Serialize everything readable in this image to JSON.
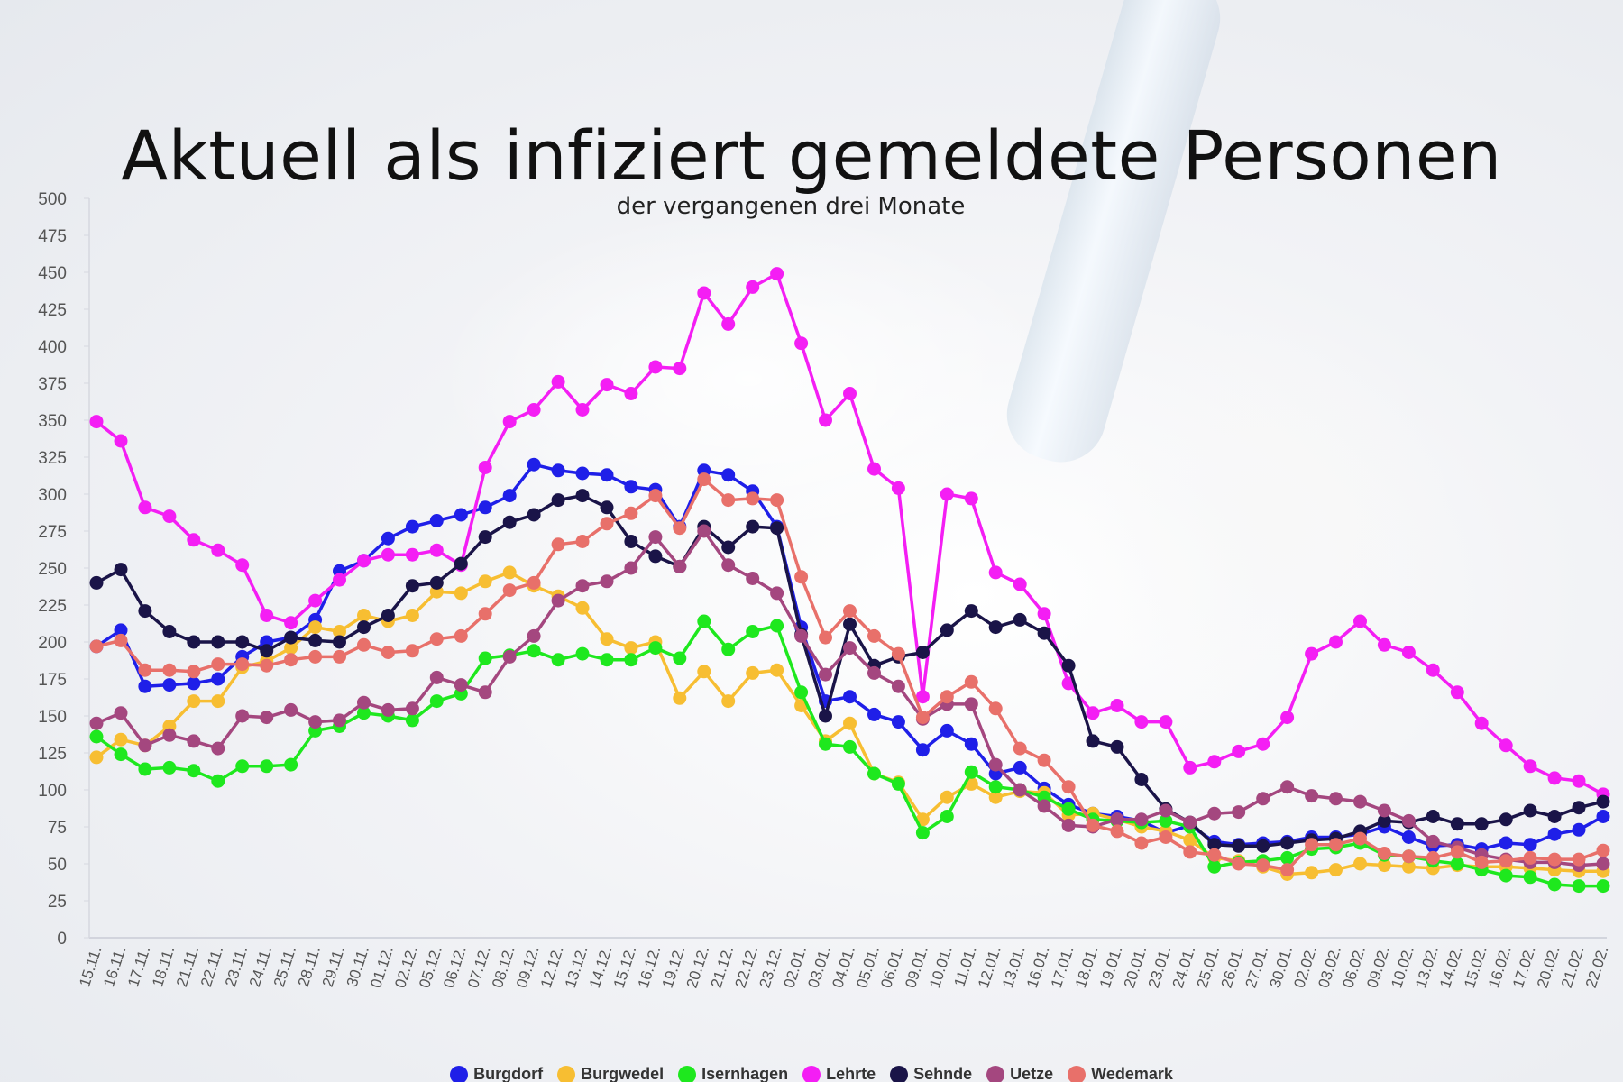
{
  "title": "Aktuell als infiziert gemeldete Personen",
  "subtitle": "der vergangenen drei Monate",
  "chart_data": {
    "type": "line",
    "title": "Aktuell als infiziert gemeldete Personen",
    "subtitle": "der vergangenen drei Monate",
    "xlabel": "",
    "ylabel": "",
    "ylim": [
      0,
      500
    ],
    "yticks": [
      0,
      25,
      50,
      75,
      100,
      125,
      150,
      175,
      200,
      225,
      250,
      275,
      300,
      325,
      350,
      375,
      400,
      425,
      450,
      475,
      500
    ],
    "grid": false,
    "legend_position": "bottom-center",
    "categories": [
      "15.11.",
      "16.11.",
      "17.11.",
      "18.11.",
      "21.11.",
      "22.11.",
      "23.11.",
      "24.11.",
      "25.11.",
      "28.11.",
      "29.11.",
      "30.11.",
      "01.12.",
      "02.12.",
      "05.12.",
      "06.12.",
      "07.12.",
      "08.12.",
      "09.12.",
      "12.12.",
      "13.12.",
      "14.12.",
      "15.12.",
      "16.12.",
      "19.12.",
      "20.12.",
      "21.12.",
      "22.12.",
      "23.12.",
      "02.01.",
      "03.01.",
      "04.01.",
      "05.01.",
      "06.01.",
      "09.01.",
      "10.01.",
      "11.01.",
      "12.01.",
      "13.01.",
      "16.01.",
      "17.01.",
      "18.01.",
      "19.01.",
      "20.01.",
      "23.01.",
      "24.01.",
      "25.01.",
      "26.01.",
      "27.01.",
      "30.01.",
      "02.02.",
      "03.02.",
      "06.02.",
      "09.02.",
      "10.02.",
      "13.02.",
      "14.02.",
      "15.02.",
      "16.02.",
      "17.02.",
      "20.02.",
      "21.02.",
      "22.02."
    ],
    "series": [
      {
        "name": "Burgdorf",
        "color": "#1f1fe8",
        "values": [
          197,
          208,
          170,
          171,
          172,
          175,
          190,
          200,
          203,
          215,
          248,
          255,
          270,
          278,
          282,
          286,
          291,
          299,
          320,
          316,
          314,
          313,
          305,
          303,
          278,
          316,
          313,
          302,
          278,
          210,
          160,
          163,
          151,
          146,
          127,
          140,
          131,
          111,
          115,
          101,
          90,
          84,
          82,
          79,
          71,
          76,
          65,
          63,
          64,
          65,
          68,
          68,
          70,
          75,
          68,
          62,
          63,
          60,
          64,
          63,
          70,
          73,
          82
        ]
      },
      {
        "name": "Burgwedel",
        "color": "#f7be32",
        "values": [
          122,
          134,
          130,
          143,
          160,
          160,
          183,
          187,
          196,
          210,
          207,
          218,
          214,
          218,
          234,
          233,
          241,
          247,
          238,
          231,
          223,
          202,
          196,
          200,
          162,
          180,
          160,
          179,
          181,
          157,
          133,
          145,
          111,
          105,
          80,
          95,
          104,
          95,
          99,
          98,
          83,
          84,
          80,
          75,
          72,
          66,
          54,
          52,
          48,
          43,
          44,
          46,
          50,
          49,
          48,
          47,
          49,
          48,
          48,
          47,
          46,
          45,
          45
        ]
      },
      {
        "name": "Isernhagen",
        "color": "#1ee81e",
        "values": [
          136,
          124,
          114,
          115,
          113,
          106,
          116,
          116,
          117,
          140,
          143,
          152,
          150,
          147,
          160,
          165,
          189,
          191,
          194,
          188,
          192,
          188,
          188,
          196,
          189,
          214,
          195,
          207,
          211,
          166,
          131,
          129,
          111,
          104,
          71,
          82,
          112,
          102,
          100,
          95,
          87,
          80,
          79,
          78,
          79,
          75,
          48,
          51,
          52,
          54,
          60,
          61,
          64,
          56,
          55,
          52,
          50,
          46,
          42,
          41,
          36,
          35,
          35
        ]
      },
      {
        "name": "Lehrte",
        "color": "#f41ef4",
        "values": [
          349,
          336,
          291,
          285,
          269,
          262,
          252,
          218,
          213,
          228,
          242,
          255,
          259,
          259,
          262,
          252,
          318,
          349,
          357,
          376,
          357,
          374,
          368,
          386,
          385,
          436,
          415,
          440,
          449,
          402,
          350,
          368,
          317,
          304,
          163,
          300,
          297,
          247,
          239,
          219,
          172,
          152,
          157,
          146,
          146,
          115,
          119,
          126,
          131,
          149,
          192,
          200,
          214,
          198,
          193,
          181,
          166,
          145,
          130,
          116,
          108,
          106,
          97
        ]
      },
      {
        "name": "Sehnde",
        "color": "#1a1448",
        "values": [
          240,
          249,
          221,
          207,
          200,
          200,
          200,
          194,
          203,
          201,
          200,
          210,
          218,
          238,
          240,
          253,
          271,
          281,
          286,
          296,
          299,
          291,
          268,
          258,
          251,
          278,
          264,
          278,
          277,
          205,
          150,
          212,
          184,
          190,
          193,
          208,
          221,
          210,
          215,
          206,
          184,
          133,
          129,
          107,
          87,
          78,
          63,
          62,
          62,
          64,
          66,
          67,
          72,
          79,
          78,
          82,
          77,
          77,
          80,
          86,
          82,
          88,
          92
        ]
      },
      {
        "name": "Uetze",
        "color": "#a4477f",
        "values": [
          145,
          152,
          130,
          137,
          133,
          128,
          150,
          149,
          154,
          146,
          147,
          159,
          154,
          155,
          176,
          171,
          166,
          190,
          204,
          228,
          238,
          241,
          250,
          271,
          251,
          275,
          252,
          243,
          233,
          204,
          178,
          196,
          179,
          170,
          148,
          158,
          158,
          117,
          100,
          89,
          76,
          75,
          80,
          80,
          86,
          78,
          84,
          85,
          94,
          102,
          96,
          94,
          92,
          86,
          79,
          65,
          61,
          56,
          53,
          51,
          51,
          49,
          50
        ]
      },
      {
        "name": "Wedemark",
        "color": "#e8706a",
        "values": [
          197,
          201,
          181,
          181,
          180,
          185,
          185,
          184,
          188,
          190,
          190,
          198,
          193,
          194,
          202,
          204,
          219,
          235,
          240,
          266,
          268,
          280,
          287,
          299,
          277,
          310,
          296,
          297,
          296,
          244,
          203,
          221,
          204,
          192,
          149,
          163,
          173,
          155,
          128,
          120,
          102,
          76,
          72,
          64,
          68,
          58,
          56,
          50,
          49,
          46,
          63,
          63,
          67,
          57,
          55,
          54,
          58,
          51,
          52,
          54,
          53,
          53,
          59
        ]
      }
    ]
  }
}
